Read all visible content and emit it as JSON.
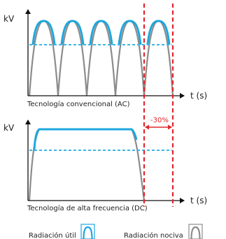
{
  "top_panel": {
    "y_axis_label": "kV",
    "x_axis_label": "t (s)",
    "caption": "Tecnología convencional (AC)",
    "pulse_count": 5
  },
  "bottom_panel": {
    "y_axis_label": "kV",
    "x_axis_label": "t (s)",
    "caption": "Tecnología de alta frecuencia (DC)",
    "reduction_label": "-30%"
  },
  "legend": {
    "useful": "Radiación útil",
    "harmful": "Radiación nociva"
  },
  "colors": {
    "useful": "#1ea7de",
    "harmful": "#8c8c8c",
    "average": "#3bb5e6",
    "marker": "#e0282e",
    "axis": "#111111"
  }
}
